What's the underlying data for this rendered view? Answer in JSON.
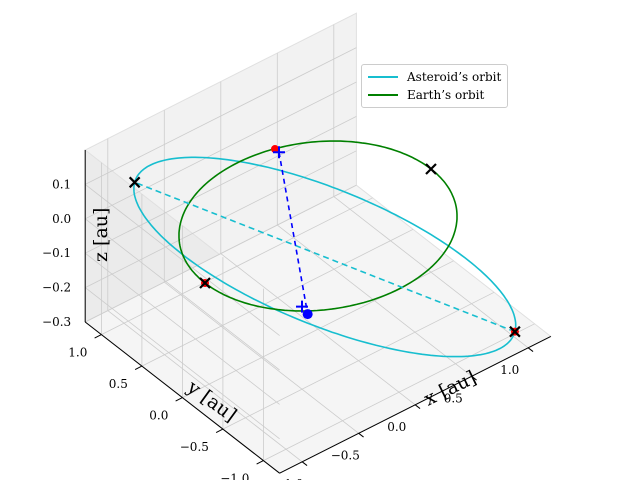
{
  "chart_data": {
    "type": "line3d",
    "xlabel": "x [au]",
    "ylabel": "y [au]",
    "zlabel": "z [au]",
    "xlim": [
      -1.2,
      1.2
    ],
    "ylim": [
      -1.2,
      1.2
    ],
    "zlim": [
      -0.3,
      0.2
    ],
    "xticks": [
      "−1.0",
      "−0.5",
      "0.0",
      "0.5",
      "1.0"
    ],
    "yticks": [
      "1.0",
      "0.5",
      "0.0",
      "−0.5",
      "−1.0"
    ],
    "zticks": [
      "0.1",
      "0.0",
      "−0.1",
      "−0.2",
      "−0.3"
    ],
    "grid": true,
    "legend_location": "upper right",
    "series": [
      {
        "name": "Asteroid’s orbit",
        "color": "#17becf",
        "kind": "ellipse",
        "center": [
          0.06,
          0.0,
          -0.1
        ],
        "u": [
          0.98,
          -0.98,
          -0.2
        ],
        "v": [
          0.55,
          0.55,
          0.0
        ]
      },
      {
        "name": "Earth’s orbit",
        "color": "#008000",
        "kind": "circle",
        "center": [
          0.0,
          0.0,
          0.0
        ],
        "radius": 1.0
      }
    ],
    "asteroid_apsides_line": {
      "from": [
        1.04,
        -0.98,
        -0.3
      ],
      "to": [
        -0.92,
        0.98,
        0.1
      ],
      "color": "#17becf",
      "style": "dashed"
    },
    "node_line": {
      "from": [
        0.3,
        0.9,
        0.0
      ],
      "to": [
        -0.45,
        -0.5,
        -0.09
      ],
      "color": "#0000ff",
      "style": "dashed"
    },
    "earth_x_markers": [
      [
        1.0,
        0.0,
        0.0
      ],
      [
        -1.0,
        0.0,
        0.0
      ]
    ],
    "asteroid_x_markers": [
      [
        1.04,
        -0.98,
        -0.3
      ],
      [
        -0.92,
        0.98,
        0.1
      ]
    ],
    "plus_markers": [
      [
        0.3,
        0.9,
        0.0
      ],
      [
        -0.5,
        -0.5,
        -0.06
      ]
    ],
    "red_points": [
      [
        0.3,
        0.95,
        0.0
      ],
      [
        -1.0,
        0.0,
        0.0
      ],
      [
        1.04,
        -0.98,
        -0.3
      ]
    ],
    "blue_point": [
      -0.45,
      -0.5,
      -0.09
    ]
  }
}
